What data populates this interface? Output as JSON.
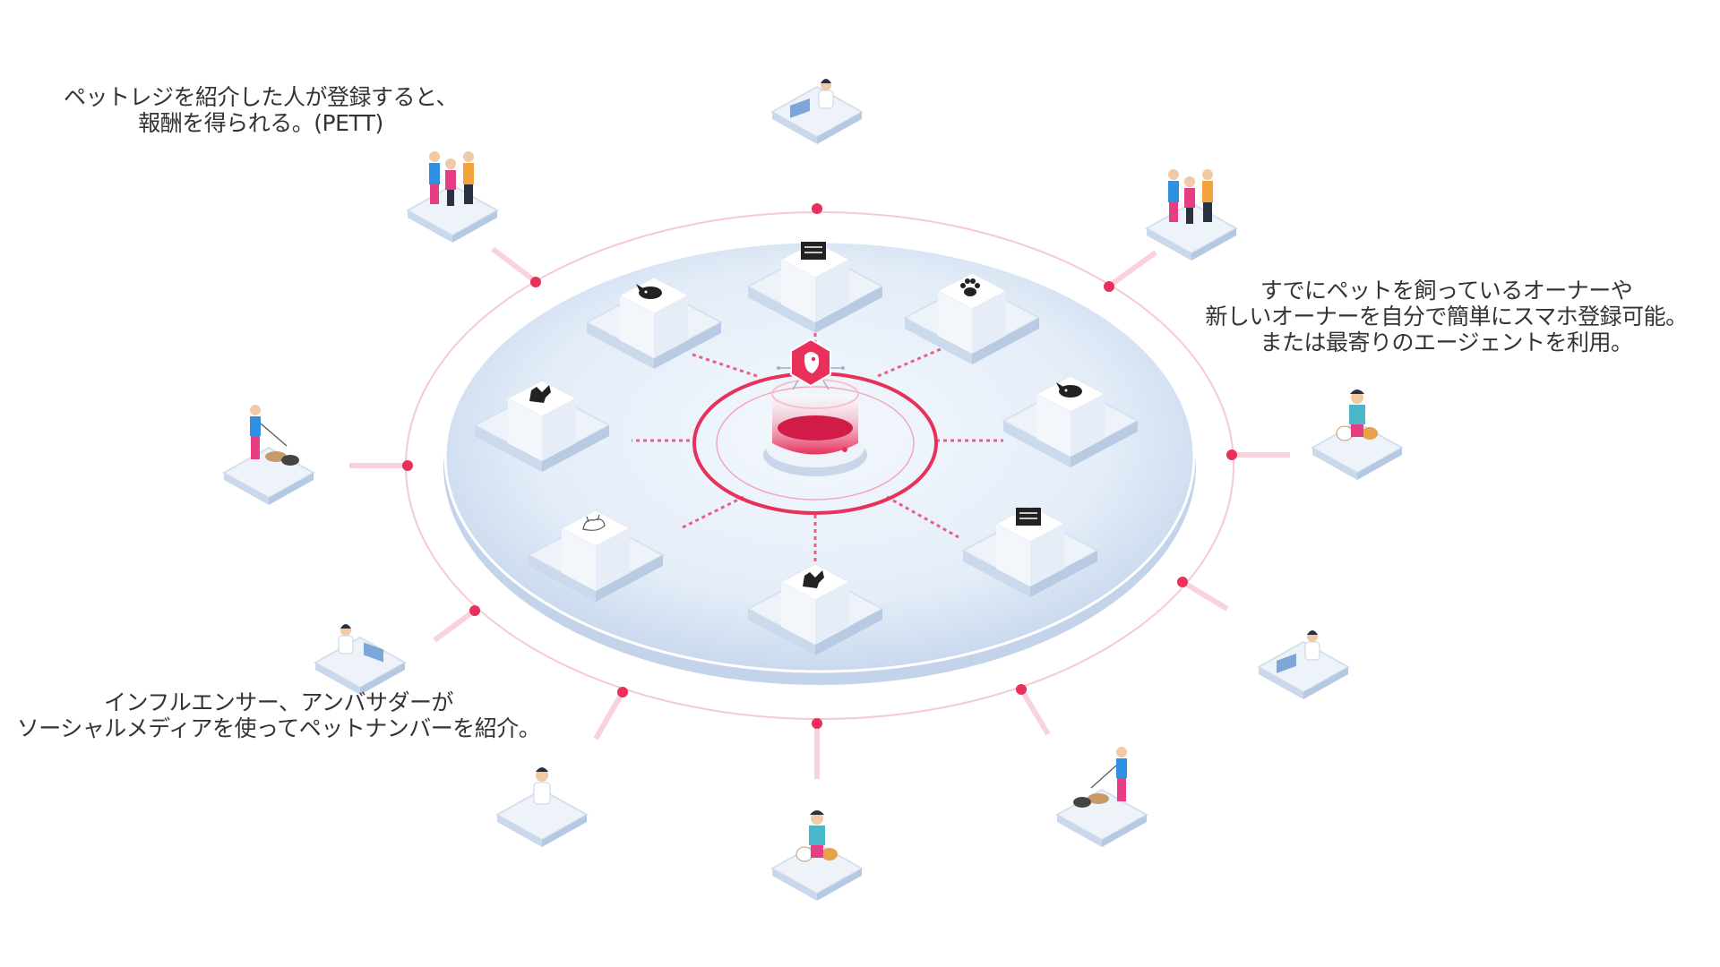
{
  "captions": {
    "referral": {
      "line1": "ペットレジを紹介した人が登録すると、",
      "line2": "報酬を得られる。(PETT)"
    },
    "owners": {
      "line1": "すでにペットを飼っているオーナーや",
      "line2": "新しいオーナーを自分で簡単にスマホ登録可能。",
      "line3": "または最寄りのエージェントを利用。"
    },
    "influencers": {
      "line1": "インフルエンサー、アンバサダーが",
      "line2": "ソーシャルメディアを使ってペットナンバーを紹介。"
    }
  },
  "colors": {
    "accent": "#e8305a",
    "platform": "#d9e6f5",
    "tile": "#edf2f9",
    "shirt_blue": "#2f8fe0",
    "shirt_pink": "#e63d85",
    "shirt_orange": "#f2a33a"
  },
  "nodes": [
    {
      "name": "node-nw-cat",
      "icon": "cat-icon"
    },
    {
      "name": "node-n-document",
      "icon": "document-icon"
    },
    {
      "name": "node-ne-paw",
      "icon": "paw-icon"
    },
    {
      "name": "node-w-dog",
      "icon": "dog-icon"
    },
    {
      "name": "node-e-cat",
      "icon": "cat-icon"
    },
    {
      "name": "node-sw-dog-sketch",
      "icon": "dog-sketch-icon"
    },
    {
      "name": "node-s-dog",
      "icon": "dog-icon"
    },
    {
      "name": "node-se-document",
      "icon": "document-icon"
    }
  ],
  "center": {
    "icon": "pet-chip-logo-icon"
  },
  "people": [
    {
      "name": "person-laptop-top",
      "icon": "laptop-person-icon"
    },
    {
      "name": "person-family-nw",
      "icon": "family-icon"
    },
    {
      "name": "person-family-ne",
      "icon": "family-icon"
    },
    {
      "name": "person-dogwalker-w",
      "icon": "dog-walker-icon"
    },
    {
      "name": "person-petowner-e",
      "icon": "pet-owner-icon"
    },
    {
      "name": "person-laptop-sw",
      "icon": "laptop-person-icon"
    },
    {
      "name": "person-laptop-se",
      "icon": "laptop-person-icon"
    },
    {
      "name": "person-thinking-s",
      "icon": "person-icon"
    },
    {
      "name": "person-petowner-s",
      "icon": "pet-owner-icon"
    },
    {
      "name": "person-dogwalker-se",
      "icon": "dog-walker-icon"
    }
  ]
}
